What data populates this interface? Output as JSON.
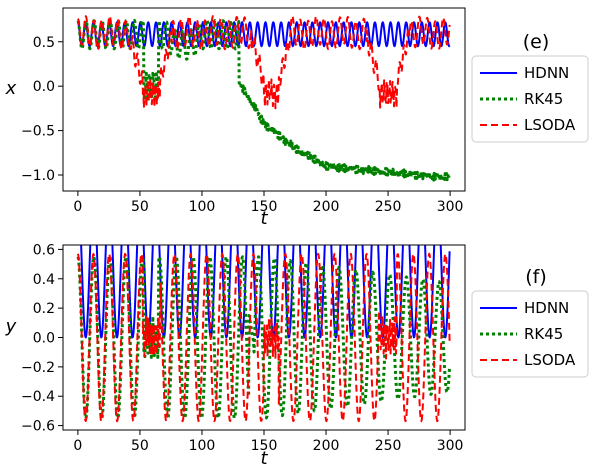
{
  "chart_data": [
    {
      "id": "e",
      "type": "line",
      "panel_label": "(e)",
      "xlabel": "t",
      "ylabel": "x",
      "xlim": [
        -12,
        312
      ],
      "ylim": [
        -1.18,
        0.88
      ],
      "xticks": [
        0,
        50,
        100,
        150,
        200,
        250,
        300
      ],
      "yticks": [
        0.5,
        0.0,
        -0.5,
        -1.0
      ],
      "ytick_labels": [
        "0.5",
        "0.0",
        "−0.5",
        "−1.0"
      ],
      "grid": false,
      "legend_position": "right",
      "legend": [
        "HDNN",
        "RK45",
        "LSODA"
      ],
      "series": [
        {
          "name": "HDNN",
          "color": "#0000ff",
          "style": "solid",
          "model": "x_hdnn",
          "summary": {
            "period": 6.3,
            "min": 0.45,
            "max": 0.72,
            "t_range": [
              0,
              300
            ]
          }
        },
        {
          "name": "RK45",
          "color": "#008000",
          "style": "dotted",
          "model": "x_rk45",
          "summary": {
            "bursts_near_zero": [
              [
                53,
                65
              ]
            ],
            "drift_start": 130,
            "final_value": -1.03,
            "anchors_t": [
              130,
              150,
              175,
              200,
              250,
              300
            ],
            "anchors_x": [
              0.05,
              -0.42,
              -0.7,
              -0.9,
              -0.97,
              -1.03
            ]
          }
        },
        {
          "name": "LSODA",
          "color": "#ff0000",
          "style": "dashed",
          "model": "x_lsoda",
          "summary": {
            "bursts_near_zero": [
              [
                52,
                66
              ],
              [
                150,
                162
              ],
              [
                243,
                257
              ]
            ],
            "min": -0.22,
            "max": 0.8
          }
        }
      ]
    },
    {
      "id": "f",
      "type": "line",
      "panel_label": "(f)",
      "xlabel": "t",
      "ylabel": "y",
      "xlim": [
        -12,
        312
      ],
      "ylim": [
        -0.63,
        0.63
      ],
      "xticks": [
        0,
        50,
        100,
        150,
        200,
        250,
        300
      ],
      "yticks": [
        0.6,
        0.4,
        0.2,
        0.0,
        -0.2,
        -0.4,
        -0.6
      ],
      "ytick_labels": [
        "0.6",
        "0.4",
        "0.2",
        "0.0",
        "−0.2",
        "−0.4",
        "−0.6"
      ],
      "grid": false,
      "legend_position": "right",
      "legend": [
        "HDNN",
        "RK45",
        "LSODA"
      ],
      "series": [
        {
          "name": "HDNN",
          "color": "#0000ff",
          "style": "solid",
          "model": "y_hdnn",
          "summary": {
            "period": 12.6,
            "amplitude": 0.55,
            "start": 0.5,
            "t_range": [
              0,
              300
            ]
          }
        },
        {
          "name": "RK45",
          "color": "#008000",
          "style": "dotted",
          "model": "y_rk45",
          "summary": {
            "amplitude": 0.55,
            "bursts_near_zero": [
              [
                53,
                65
              ]
            ],
            "spike_t": 140,
            "decay_after": 150
          }
        },
        {
          "name": "LSODA",
          "color": "#ff0000",
          "style": "dashed",
          "model": "y_lsoda",
          "summary": {
            "amplitude": 0.57,
            "bursts_near_zero": [
              [
                52,
                66
              ],
              [
                150,
                162
              ],
              [
                243,
                257
              ]
            ]
          }
        }
      ]
    }
  ]
}
